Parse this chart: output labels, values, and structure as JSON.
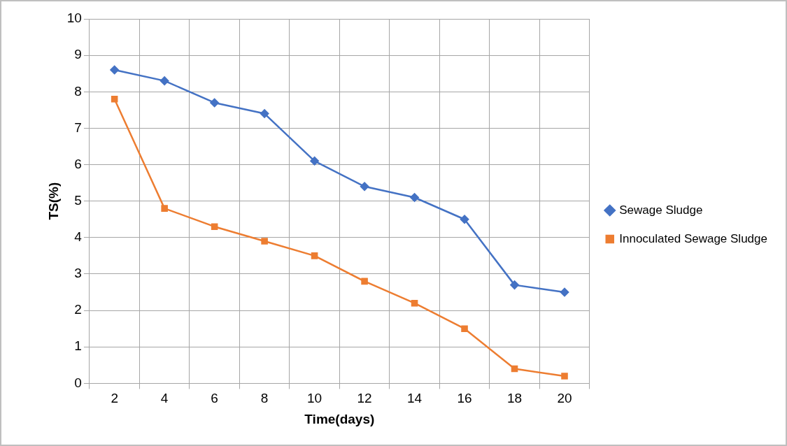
{
  "chart_data": {
    "type": "line",
    "xlabel": "Time(days)",
    "ylabel": "TS(%)",
    "categories": [
      "2",
      "4",
      "6",
      "8",
      "10",
      "12",
      "14",
      "16",
      "18",
      "20"
    ],
    "series": [
      {
        "name": "Sewage Sludge",
        "color": "#4472c4",
        "marker": "diamond",
        "values": [
          8.6,
          8.3,
          7.7,
          7.4,
          6.1,
          5.4,
          5.1,
          4.5,
          2.7,
          2.5
        ]
      },
      {
        "name": "Innoculated Sewage Sludge",
        "color": "#ed7d31",
        "marker": "square",
        "values": [
          7.8,
          4.8,
          4.3,
          3.9,
          3.5,
          2.8,
          2.2,
          1.5,
          0.4,
          0.2
        ]
      }
    ],
    "ylim": [
      0,
      10
    ],
    "yticks": [
      0,
      1,
      2,
      3,
      4,
      5,
      6,
      7,
      8,
      9,
      10
    ],
    "grid": true,
    "legend": "right",
    "line_style": "solid"
  }
}
